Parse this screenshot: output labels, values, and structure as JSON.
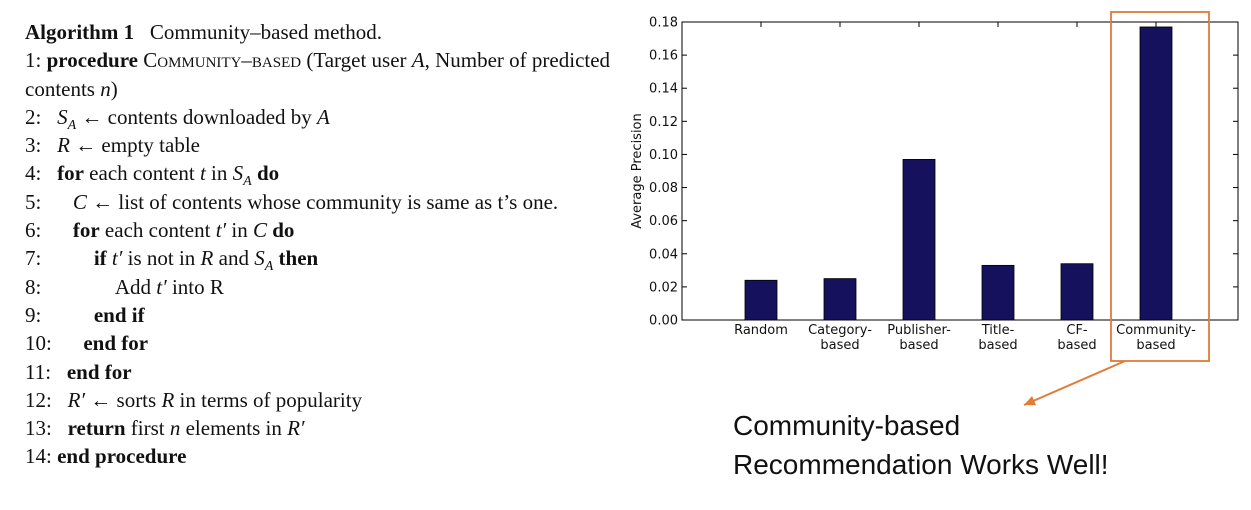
{
  "algorithm": {
    "title_label": "Algorithm 1",
    "title_text": "Community–based method.",
    "lines": [
      {
        "n": "1:",
        "text": "procedure COMMUNITY–BASED (Target user A, Number of predicted contents n)"
      },
      {
        "n": "2:",
        "text": "S_A ← contents downloaded by A"
      },
      {
        "n": "3:",
        "text": "R ← empty table"
      },
      {
        "n": "4:",
        "text": "for each content t in S_A do"
      },
      {
        "n": "5:",
        "text": "C ← list of contents whose community is same as t's one."
      },
      {
        "n": "6:",
        "text": "for each content t′ in C do"
      },
      {
        "n": "7:",
        "text": "if t′ is not in R and S_A then"
      },
      {
        "n": "8:",
        "text": "Add t′ into R"
      },
      {
        "n": "9:",
        "text": "end if"
      },
      {
        "n": "10:",
        "text": "end for"
      },
      {
        "n": "11:",
        "text": "end for"
      },
      {
        "n": "12:",
        "text": "R′ ← sorts R in terms of popularity"
      },
      {
        "n": "13:",
        "text": "return first n elements in R′"
      },
      {
        "n": "14:",
        "text": "end procedure"
      }
    ]
  },
  "chart_data": {
    "type": "bar",
    "categories": [
      "Random",
      "Category-\nbased",
      "Publisher-\nbased",
      "Title-\nbased",
      "CF-\nbased",
      "Community-\nbased"
    ],
    "values": [
      0.024,
      0.025,
      0.097,
      0.033,
      0.034,
      0.177
    ],
    "title": "",
    "xlabel": "",
    "ylabel": "Average Precision",
    "ylim": [
      0,
      0.18
    ],
    "yticks": [
      0.0,
      0.02,
      0.04,
      0.06,
      0.08,
      0.1,
      0.12,
      0.14,
      0.16,
      0.18
    ],
    "ytick_labels": [
      "0.00",
      "0.02",
      "0.04",
      "0.06",
      "0.08",
      "0.10",
      "0.12",
      "0.14",
      "0.16",
      "0.18"
    ],
    "bar_color": "#15115c",
    "highlight_color": "#e07b39",
    "highlighted_category": "Community-\nbased",
    "grid": false
  },
  "callout": {
    "line1": "Community-based",
    "line2": "Recommendation Works Well!"
  }
}
